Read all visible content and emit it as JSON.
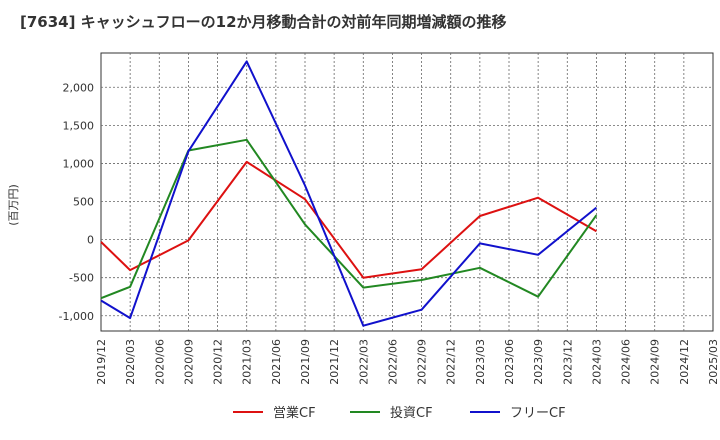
{
  "chart_data": {
    "type": "line",
    "title": "[7634]  キャッシュフローの12か月移動合計の対前年同期増減額の推移",
    "ylabel": "(百万円)",
    "xlabel": "",
    "ylim": [
      -1200,
      2450
    ],
    "yticks": [
      -1000,
      -500,
      0,
      500,
      1000,
      1500,
      2000
    ],
    "ytick_labels": [
      "-1,000",
      "-500",
      "0",
      "500",
      "1,000",
      "1,500",
      "2,000"
    ],
    "x": [
      "2019/12",
      "2020/03",
      "2020/06",
      "2020/09",
      "2020/12",
      "2021/03",
      "2021/06",
      "2021/09",
      "2021/12",
      "2022/03",
      "2022/06",
      "2022/09",
      "2022/12",
      "2023/03",
      "2023/06",
      "2023/09",
      "2023/12",
      "2024/03",
      "2024/06",
      "2024/09",
      "2024/12",
      "2025/03"
    ],
    "grid": true,
    "legend_position": "bottom-center",
    "series": [
      {
        "name": "営業CF",
        "color": "#dd1111",
        "values": [
          -30,
          -400,
          null,
          -10,
          null,
          1020,
          null,
          530,
          null,
          -500,
          null,
          -390,
          null,
          310,
          null,
          550,
          null,
          110,
          null,
          null,
          null,
          null
        ]
      },
      {
        "name": "投資CF",
        "color": "#228822",
        "values": [
          -770,
          -620,
          null,
          1170,
          null,
          1310,
          null,
          200,
          null,
          -630,
          null,
          -530,
          null,
          -370,
          null,
          -750,
          null,
          320,
          null,
          null,
          null,
          null
        ]
      },
      {
        "name": "フリーCF",
        "color": "#1111cc",
        "values": [
          -800,
          -1030,
          null,
          1160,
          null,
          2340,
          null,
          710,
          null,
          -1130,
          null,
          -920,
          null,
          -50,
          null,
          -200,
          null,
          420,
          null,
          null,
          null,
          null
        ]
      }
    ]
  }
}
